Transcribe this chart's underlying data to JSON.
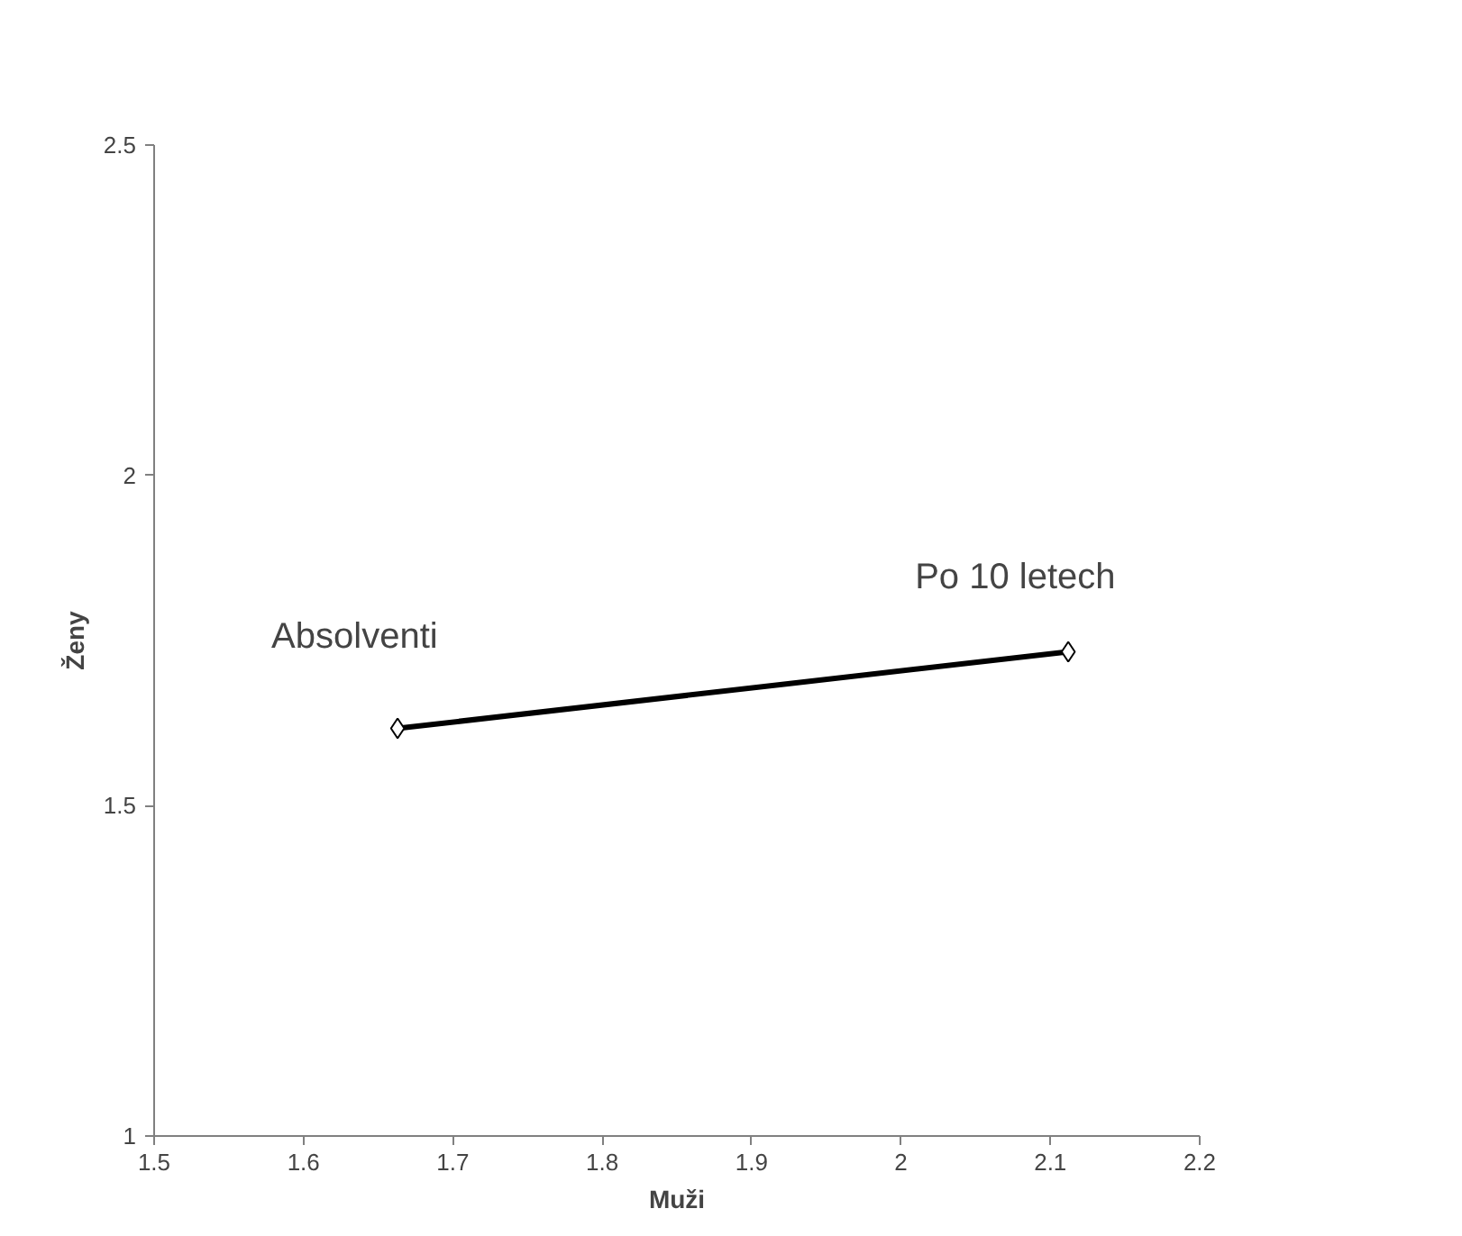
{
  "chart_data": {
    "type": "line",
    "xlabel": "Muži",
    "ylabel": "Ženy",
    "x": [
      1.663,
      2.112
    ],
    "series": [
      {
        "color": "#000000",
        "values": [
          1.617,
          1.733
        ]
      }
    ],
    "xlim": [
      1.5,
      2.2
    ],
    "xticks": [
      1.5,
      1.6,
      1.7,
      1.8,
      1.9,
      2,
      2.1,
      2.2
    ],
    "ylim": [
      1,
      2.5
    ],
    "yticks": [
      1,
      1.5,
      2,
      2.5
    ],
    "grid": false,
    "marker": "diamond",
    "line_style": "solid",
    "annotations": [
      {
        "text": "Absolventi",
        "x": 1.663,
        "y": 1.617
      },
      {
        "text": "Po 10 letech",
        "x": 2.112,
        "y": 1.733
      }
    ]
  }
}
